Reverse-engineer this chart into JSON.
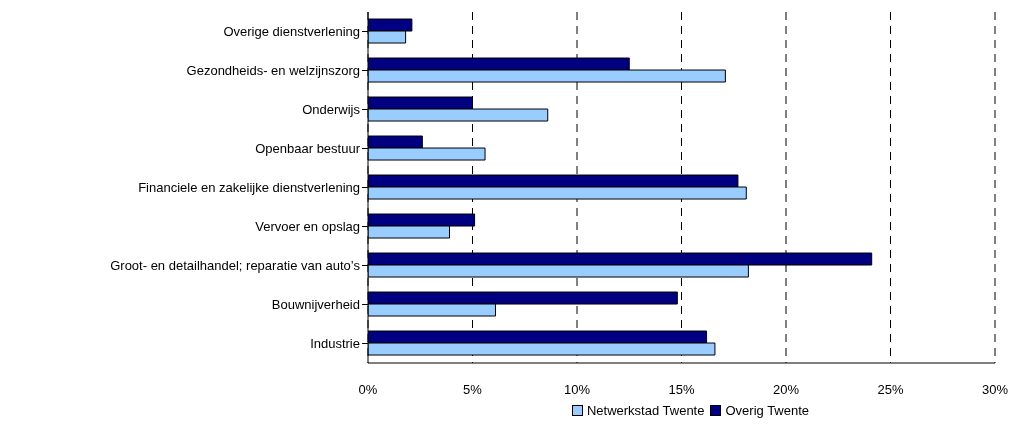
{
  "chart_data": {
    "type": "bar",
    "orientation": "horizontal",
    "categories": [
      "Overige dienstverlening",
      "Gezondheids- en welzijnszorg",
      "Onderwijs",
      "Openbaar bestuur",
      "Financiele en zakelijke dienstverlening",
      "Vervoer en opslag",
      "Groot- en detailhandel; reparatie van auto’s",
      "Bouwnijverheid",
      "Industrie"
    ],
    "series": [
      {
        "name": "Netwerkstad Twente",
        "color": "#99ccff",
        "values": [
          1.8,
          17.1,
          8.6,
          5.6,
          18.1,
          3.9,
          18.2,
          6.1,
          16.6
        ]
      },
      {
        "name": "Overig Twente",
        "color": "#000080",
        "values": [
          2.1,
          12.5,
          5.0,
          2.6,
          17.7,
          5.1,
          24.1,
          14.8,
          16.2
        ]
      }
    ],
    "xlim": [
      0,
      30
    ],
    "xticks": [
      {
        "value": 0,
        "label": "0%"
      },
      {
        "value": 5,
        "label": "5%"
      },
      {
        "value": 10,
        "label": "10%"
      },
      {
        "value": 15,
        "label": "15%"
      },
      {
        "value": 20,
        "label": "20%"
      },
      {
        "value": 25,
        "label": "25%"
      },
      {
        "value": 30,
        "label": "30%"
      }
    ],
    "grid": "x",
    "legend": "bottom"
  }
}
